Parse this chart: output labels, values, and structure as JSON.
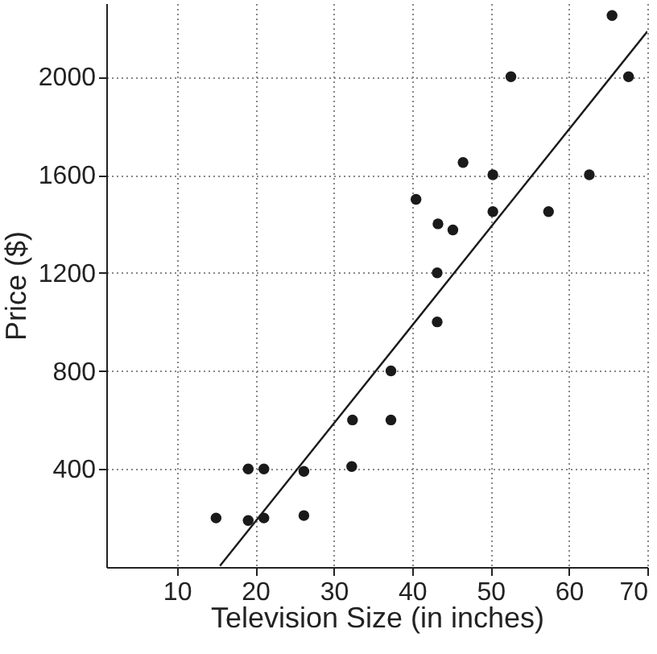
{
  "chart_data": {
    "type": "scatter",
    "xlabel": "Television Size (in inches)",
    "ylabel": "Price ($)",
    "xlim": [
      1,
      70
    ],
    "ylim": [
      0,
      2300
    ],
    "xticks": [
      10,
      20,
      30,
      40,
      50,
      60,
      70
    ],
    "yticks": [
      400,
      800,
      1200,
      1600,
      2000
    ],
    "grid": true,
    "series": [
      {
        "marker": "circle",
        "color": "#1a1a1a",
        "x": [
          65.5,
          52.6,
          67.6,
          46.5,
          50.3,
          62.6,
          40.5,
          50.3,
          57.4,
          43.3,
          45.2,
          43.2,
          43.2,
          37.3,
          32.4,
          37.3,
          19.1,
          21.1,
          26.2,
          32.3,
          15,
          19.1,
          21.1,
          26.2
        ],
        "values": [
          2250,
          2000,
          2000,
          1650,
          1600,
          1600,
          1500,
          1450,
          1450,
          1400,
          1375,
          1200,
          1000,
          800,
          600,
          600,
          400,
          400,
          390,
          410,
          200,
          190,
          200,
          210
        ]
      },
      {
        "type": "line",
        "marker": "none",
        "color": "#1a1a1a",
        "x": [
          15.5,
          70
        ],
        "values": [
          5,
          2185
        ]
      }
    ]
  }
}
